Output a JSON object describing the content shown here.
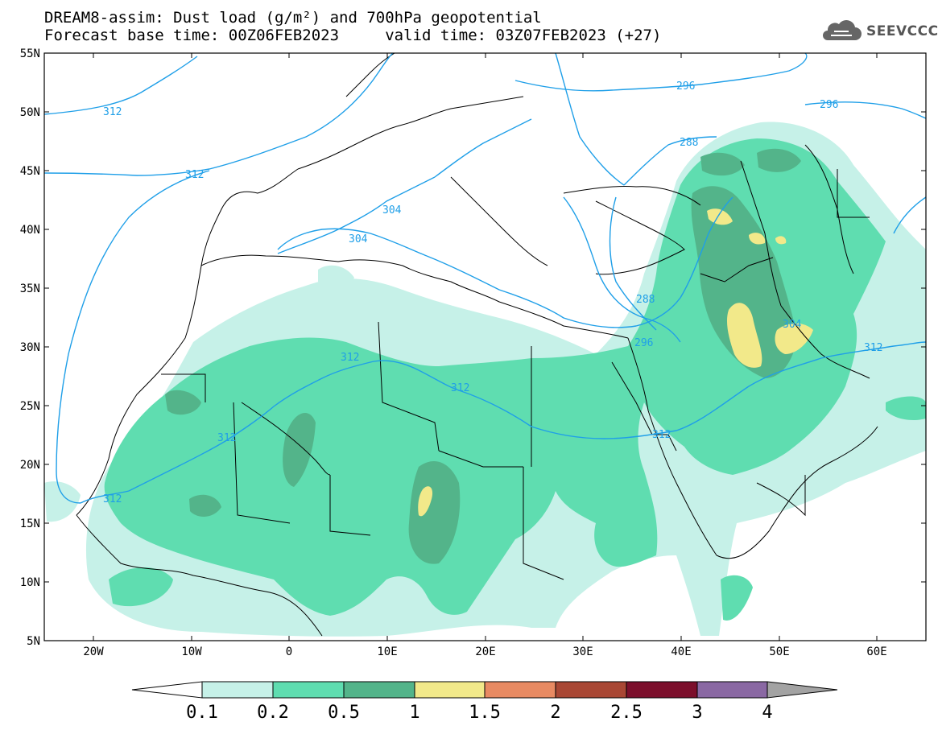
{
  "header": {
    "title_line1": "DREAM8-assim: Dust load (g/m²) and 700hPa geopotential",
    "title_line2": "Forecast base time: 00Z06FEB2023     valid time: 03Z07FEB2023 (+27)"
  },
  "logo": {
    "text": "SEEVCCC",
    "icon": "cloud-icon"
  },
  "map": {
    "lon_range": [
      -25,
      65
    ],
    "lat_range": [
      5,
      55
    ],
    "lat_labels": [
      "55N",
      "50N",
      "45N",
      "40N",
      "35N",
      "30N",
      "25N",
      "20N",
      "15N",
      "10N",
      "5N"
    ],
    "lon_labels": [
      "20W",
      "10W",
      "0",
      "10E",
      "20E",
      "30E",
      "40E",
      "50E",
      "60E"
    ],
    "contour_labels": {
      "c312_a": "312",
      "c312_b": "312",
      "c312_c": "312",
      "c312_d": "312",
      "c312_e": "312",
      "c312_f": "312",
      "c312_g": "312",
      "c304_a": "304",
      "c304_b": "304",
      "c304_c": "304",
      "c296_a": "296",
      "c296_b": "296",
      "c296_c": "296",
      "c288_a": "288",
      "c288_b": "288"
    },
    "colors": {
      "contour": "#1f9fe8",
      "level_0_1": "#c6f1e8",
      "level_0_2": "#5fddb0",
      "level_0_5": "#53b48a",
      "level_1": "#f2e98a",
      "coast": "#000000"
    }
  },
  "colorbar": {
    "labels": [
      "0.1",
      "0.2",
      "0.5",
      "1",
      "1.5",
      "2",
      "2.5",
      "3",
      "4"
    ],
    "colors": [
      "#c6f1e8",
      "#5fddb0",
      "#53b48a",
      "#f2e98a",
      "#e88a62",
      "#a94734",
      "#7c0f2c",
      "#8a68a3",
      "#a3a3a3"
    ]
  }
}
